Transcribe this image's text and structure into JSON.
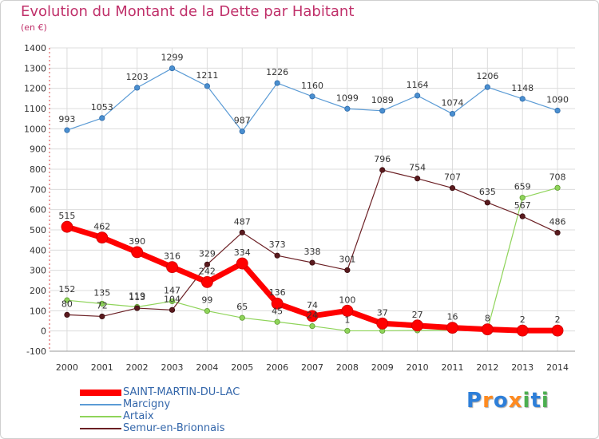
{
  "header": {
    "title": "Evolution du Montant de la Dette par Habitant",
    "subtitle": "(en €)"
  },
  "chart_data": {
    "type": "line",
    "title": "Evolution du Montant de la Dette par Habitant",
    "ylabel": "(en €)",
    "xlabel": "",
    "x": [
      2000,
      2001,
      2002,
      2003,
      2004,
      2005,
      2006,
      2007,
      2008,
      2009,
      2010,
      2011,
      2012,
      2013,
      2014
    ],
    "ylim": [
      -100,
      1400
    ],
    "yticks": [
      -100,
      0,
      100,
      200,
      300,
      400,
      500,
      600,
      700,
      800,
      900,
      1000,
      1100,
      1200,
      1300,
      1400
    ],
    "grid": true,
    "legend_placement": "bottom-left",
    "series": [
      {
        "name": "Marcigny",
        "color": "#5b9bd5",
        "values": [
          993,
          1053,
          1203,
          1299,
          1211,
          987,
          1226,
          1160,
          1099,
          1089,
          1164,
          1074,
          1206,
          1148,
          1090
        ]
      },
      {
        "name": "Artaix",
        "color": "#8fd45a",
        "values": [
          152,
          135,
          119,
          147,
          99,
          65,
          45,
          24,
          1,
          1,
          3,
          4,
          6,
          659,
          708
        ]
      },
      {
        "name": "Semur-en-Brionnais",
        "color": "#6b1f24",
        "values": [
          80,
          72,
          113,
          104,
          329,
          487,
          373,
          338,
          301,
          796,
          754,
          707,
          635,
          567,
          486
        ]
      },
      {
        "name": "SAINT-MARTIN-DU-LAC",
        "color": "#ff0000",
        "values": [
          515,
          462,
          390,
          316,
          242,
          334,
          136,
          74,
          100,
          37,
          27,
          16,
          8,
          2,
          2
        ]
      }
    ],
    "data_labels": [
      {
        "series": "Marcigny",
        "values": [
          993,
          1053,
          1203,
          1299,
          1211,
          987,
          1226,
          1160,
          1099,
          1089,
          1164,
          1074,
          1206,
          1148,
          1090
        ]
      },
      {
        "series": "SAINT-MARTIN-DU-LAC",
        "values": [
          515,
          462,
          390,
          316,
          242,
          334,
          136,
          74,
          100,
          37,
          27,
          16,
          8,
          2,
          2
        ]
      },
      {
        "series": "Semur-en-Brionnais",
        "values": [
          80,
          72,
          113,
          104,
          329,
          487,
          373,
          338,
          301,
          796,
          754,
          707,
          635,
          567,
          486
        ]
      },
      {
        "series": "Artaix",
        "values": [
          152,
          135,
          119,
          147,
          99,
          65,
          45,
          24,
          1,
          "",
          "",
          "",
          "",
          659,
          708
        ]
      }
    ]
  },
  "legend": {
    "items": [
      {
        "label": "SAINT-MARTIN-DU-LAC",
        "color": "#ff0000"
      },
      {
        "label": "Marcigny",
        "color": "#5b9bd5"
      },
      {
        "label": "Artaix",
        "color": "#8fd45a"
      },
      {
        "label": "Semur-en-Brionnais",
        "color": "#6b1f24"
      }
    ]
  },
  "logo": {
    "text": "Proxiti",
    "letters": [
      "P",
      "r",
      "o",
      "x",
      "i",
      "t",
      "i"
    ],
    "colors": [
      "#2e7fd9",
      "#ff8a1f",
      "#2e7fd9",
      "#ff8a1f",
      "#4caf50",
      "#2e7fd9",
      "#4caf50"
    ]
  }
}
